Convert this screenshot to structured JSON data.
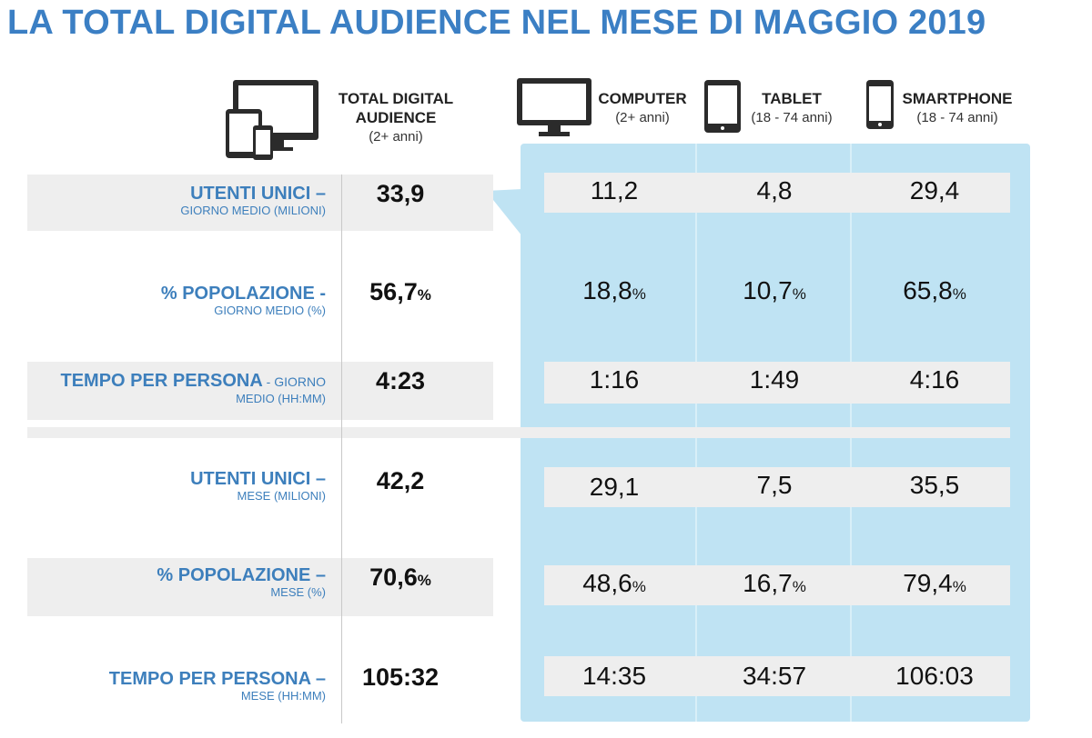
{
  "title": "LA TOTAL DIGITAL AUDIENCE NEL MESE DI MAGGIO 2019",
  "columns": {
    "total": {
      "name_line1": "TOTAL DIGITAL",
      "name_line2": "AUDIENCE",
      "range": "(2+ anni)",
      "icon": "multi-device-icon"
    },
    "computer": {
      "name": "COMPUTER",
      "range": "(2+ anni)",
      "icon": "monitor-icon"
    },
    "tablet": {
      "name": "TABLET",
      "range": "(18 - 74 anni)",
      "icon": "tablet-icon"
    },
    "smartphone": {
      "name": "SMARTPHONE",
      "range": "(18 - 74 anni)",
      "icon": "smartphone-icon"
    }
  },
  "pct_sign": "%",
  "rows": [
    {
      "label_main": "UTENTI UNICI –",
      "label_sub": "GIORNO MEDIO (MILIONI)",
      "total": "33,9",
      "computer": "11,2",
      "tablet": "4,8",
      "smartphone": "29,4"
    },
    {
      "label_main": "% POPOLAZIONE -",
      "label_sub": "GIORNO MEDIO (%)",
      "total": "56,7",
      "computer": "18,8",
      "tablet": "10,7",
      "smartphone": "65,8"
    },
    {
      "label_main": "TEMPO PER PERSONA",
      "label_main_suffix": " - GIORNO",
      "label_sub": "MEDIO (HH:MM)",
      "total": "4:23",
      "computer": "1:16",
      "tablet": "1:49",
      "smartphone": "4:16"
    },
    {
      "label_main": "UTENTI UNICI –",
      "label_sub": "MESE (MILIONI)",
      "total": "42,2",
      "computer": "29,1",
      "tablet": "7,5",
      "smartphone": "35,5"
    },
    {
      "label_main": "% POPOLAZIONE –",
      "label_sub": "MESE (%)",
      "total": "70,6",
      "computer": "48,6",
      "tablet": "16,7",
      "smartphone": "79,4"
    },
    {
      "label_main": "TEMPO PER PERSONA –",
      "label_sub": "MESE (HH:MM)",
      "total": "105:32",
      "computer": "14:35",
      "tablet": "34:57",
      "smartphone": "106:03"
    }
  ]
}
